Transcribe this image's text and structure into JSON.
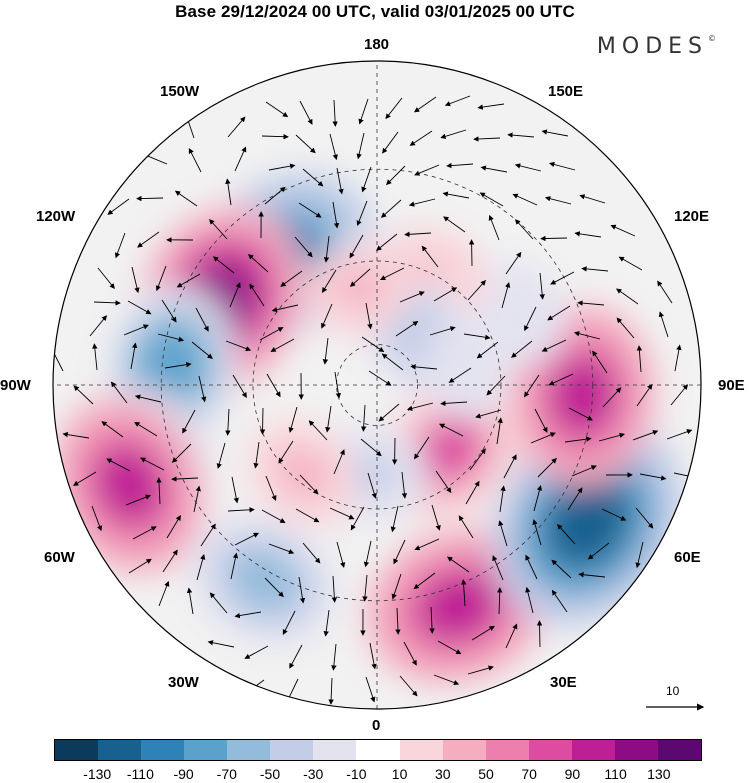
{
  "title": "Base 29/12/2024 00 UTC, valid 03/01/2025 00 UTC",
  "logo": "MODES",
  "longitude_labels": {
    "lon_180": "180",
    "lon_150W": "150W",
    "lon_150E": "150E",
    "lon_120W": "120W",
    "lon_120E": "120E",
    "lon_90W": "90W",
    "lon_90E": "90E",
    "lon_60W": "60W",
    "lon_60E": "60E",
    "lon_30W": "30W",
    "lon_30E": "30E",
    "lon_0": "0"
  },
  "reference_vector": {
    "label": "10"
  },
  "colorbar": {
    "ticks": [
      "-130",
      "-110",
      "-90",
      "-70",
      "-50",
      "-30",
      "-10",
      "10",
      "30",
      "50",
      "70",
      "90",
      "110",
      "130"
    ],
    "colors": [
      "#0b3a5c",
      "#17608f",
      "#2f82b8",
      "#5aa1cc",
      "#93bcdc",
      "#c3cde8",
      "#e3e3f0",
      "#ffffff",
      "#f9d6db",
      "#f4aec0",
      "#ec7fad",
      "#dd4ca1",
      "#bf1f95",
      "#8e0b86",
      "#5c0871"
    ]
  },
  "anomalies": [
    {
      "lon": -145,
      "lat": 52,
      "value": -100
    },
    {
      "lon": -118,
      "lat": 48,
      "value": 110
    },
    {
      "lon": -95,
      "lat": 42,
      "value": -80
    },
    {
      "lon": -72,
      "lat": 36,
      "value": -60
    },
    {
      "lon": -68,
      "lat": 30,
      "value": 95
    },
    {
      "lon": -30,
      "lat": 38,
      "value": -70
    },
    {
      "lon": 20,
      "lat": 36,
      "value": 100
    },
    {
      "lon": 57,
      "lat": 33,
      "value": -130
    },
    {
      "lon": 87,
      "lat": 42,
      "value": 95
    },
    {
      "lon": 117,
      "lat": 52,
      "value": -30
    },
    {
      "lon": 153,
      "lat": 60,
      "value": 35
    },
    {
      "lon": 180,
      "lat": 62,
      "value": -20
    },
    {
      "lon": 170,
      "lat": 68,
      "value": 55
    },
    {
      "lon": 135,
      "lat": 74,
      "value": -45
    },
    {
      "lon": 48,
      "lat": 66,
      "value": 70
    },
    {
      "lon": -5,
      "lat": 68,
      "value": -40
    },
    {
      "lon": -40,
      "lat": 62,
      "value": 40
    },
    {
      "lon": 100,
      "lat": 68,
      "value": -25
    },
    {
      "lon": -170,
      "lat": 66,
      "value": 30
    }
  ]
}
